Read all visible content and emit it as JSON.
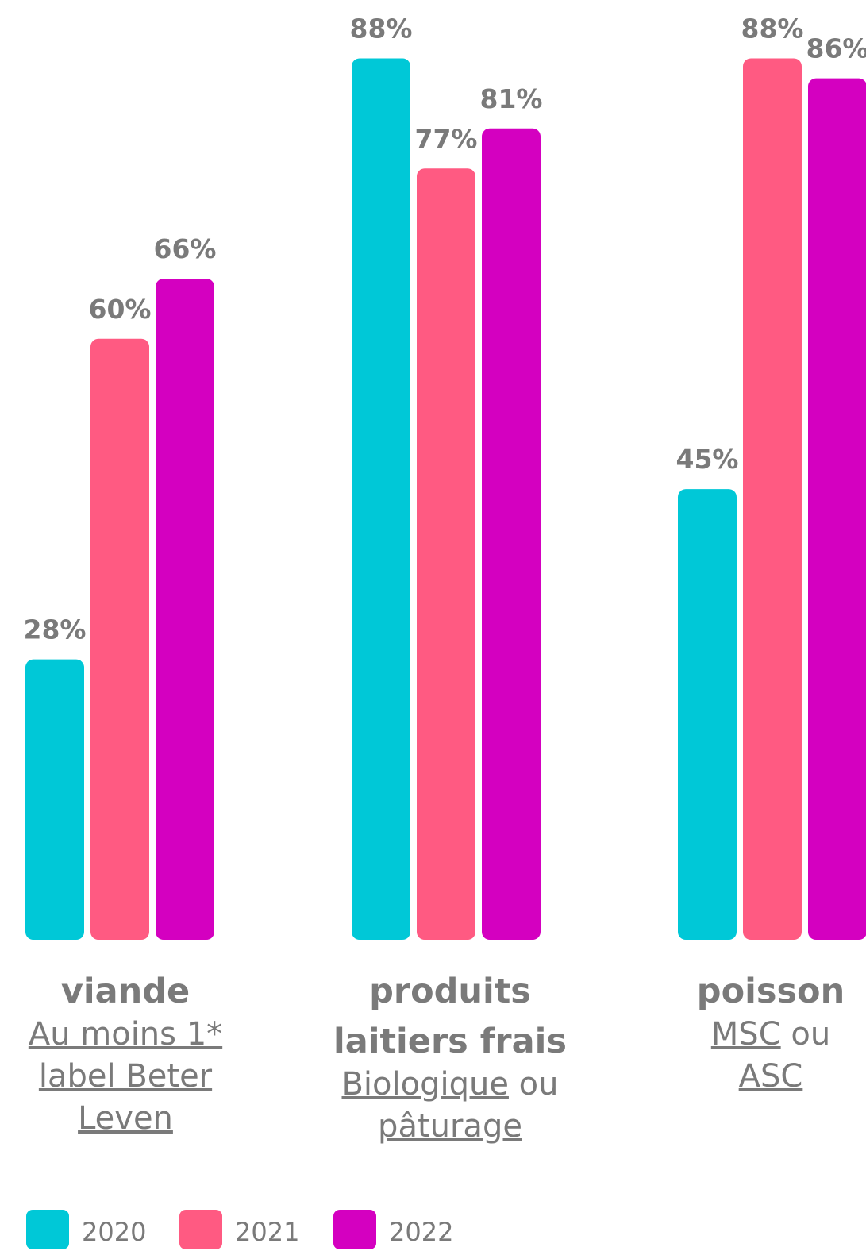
{
  "chart_data": {
    "type": "bar",
    "ylim": [
      0,
      100
    ],
    "grid": false,
    "legend_position": "bottom-left",
    "series": [
      {
        "name": "2020",
        "color": "#00c8d7",
        "values": [
          28,
          88,
          45
        ]
      },
      {
        "name": "2021",
        "color": "#ff5a82",
        "values": [
          60,
          77,
          88
        ]
      },
      {
        "name": "2022",
        "color": "#d400c0",
        "values": [
          66,
          81,
          86
        ]
      }
    ],
    "value_labels": [
      [
        "28%",
        "88%",
        "45%"
      ],
      [
        "60%",
        "77%",
        "88%"
      ],
      [
        "66%",
        "81%",
        "86%"
      ]
    ],
    "categories": [
      {
        "title": [
          "viande"
        ],
        "subtitle": [
          [
            {
              "text": "Au moins 1* ",
              "u": true
            }
          ],
          [
            {
              "text": "label Beter ",
              "u": true
            }
          ],
          [
            {
              "text": "Leven",
              "u": true
            }
          ]
        ]
      },
      {
        "title": [
          "produits",
          "laitiers frais"
        ],
        "subtitle": [
          [
            {
              "text": "Biologique",
              "u": true
            },
            {
              "text": " ou",
              "u": false
            }
          ],
          [
            {
              "text": "pâturage",
              "u": true
            }
          ]
        ]
      },
      {
        "title": [
          "poisson"
        ],
        "subtitle": [
          [
            {
              "text": "MSC",
              "u": true
            },
            {
              "text": " ou",
              "u": false
            }
          ],
          [
            {
              "text": "ASC",
              "u": true
            }
          ]
        ]
      }
    ]
  }
}
